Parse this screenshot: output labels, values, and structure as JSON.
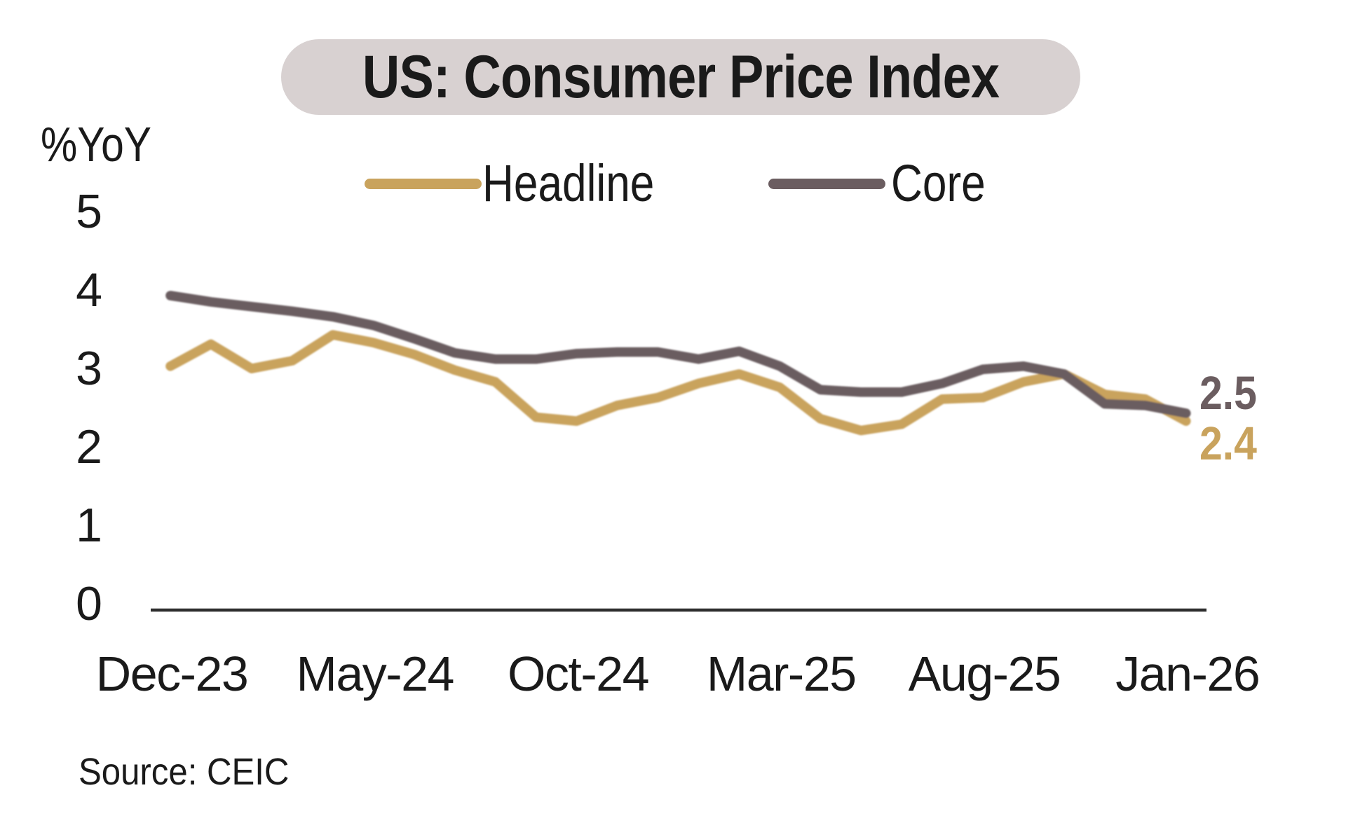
{
  "title": "US: Consumer Price Index",
  "y_axis_unit": "%YoY",
  "source_note": "Source: CEIC",
  "colors": {
    "headline": "#C9A35D",
    "core": "#6B5D60",
    "title_pill_bg": "#D8D1D1",
    "axis_line": "#2e2e2e",
    "text": "#1a1a1a"
  },
  "legend": {
    "items": [
      {
        "label": "Headline",
        "color": "#C9A35D"
      },
      {
        "label": "Core",
        "color": "#6B5D60"
      }
    ]
  },
  "end_value_labels": {
    "core": "2.5",
    "headline": "2.4"
  },
  "chart_data": {
    "type": "line",
    "title": "US: Consumer Price Index",
    "ylabel": "%YoY",
    "ylim": [
      0,
      5
    ],
    "y_ticks": [
      5,
      4,
      3,
      2,
      1,
      0
    ],
    "x_tick_labels": [
      "Dec-23",
      "May-24",
      "Oct-24",
      "Mar-25",
      "Aug-25",
      "Jan-26"
    ],
    "grid": false,
    "legend_position": "top",
    "x": [
      "Dec-23",
      "Jan-24",
      "Feb-24",
      "Mar-24",
      "Apr-24",
      "May-24",
      "Jun-24",
      "Jul-24",
      "Aug-24",
      "Sep-24",
      "Oct-24",
      "Nov-24",
      "Dec-24",
      "Jan-25",
      "Feb-25",
      "Mar-25",
      "Apr-25",
      "May-25",
      "Jun-25",
      "Jul-25",
      "Aug-25",
      "Sep-25",
      "Oct-25",
      "Nov-25",
      "Dec-25",
      "Jan-26"
    ],
    "series": [
      {
        "name": "Headline",
        "color": "#C9A35D",
        "values": [
          3.1,
          3.38,
          3.07,
          3.17,
          3.5,
          3.4,
          3.25,
          3.05,
          2.9,
          2.45,
          2.4,
          2.6,
          2.7,
          2.88,
          3.0,
          2.83,
          2.43,
          2.28,
          2.36,
          2.68,
          2.7,
          2.9,
          3.0,
          2.74,
          2.68,
          2.4
        ]
      },
      {
        "name": "Core",
        "color": "#6B5D60",
        "values": [
          4.0,
          3.92,
          3.86,
          3.8,
          3.73,
          3.62,
          3.45,
          3.27,
          3.19,
          3.19,
          3.26,
          3.28,
          3.28,
          3.19,
          3.29,
          3.1,
          2.8,
          2.77,
          2.77,
          2.88,
          3.06,
          3.1,
          3.0,
          2.62,
          2.6,
          2.5
        ]
      }
    ]
  }
}
